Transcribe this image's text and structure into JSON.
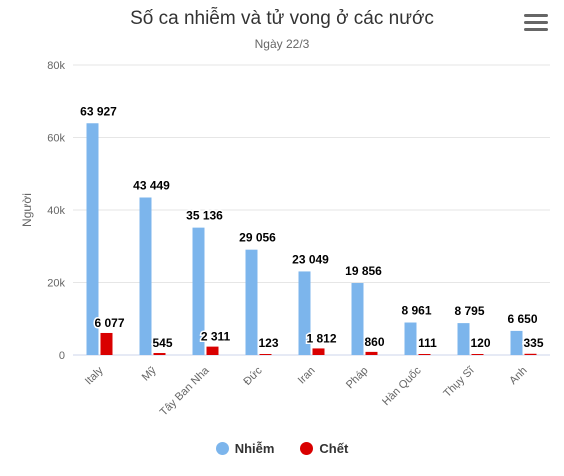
{
  "chart_data": {
    "type": "bar",
    "title": "Số ca nhiễm và tử vong ở các nước",
    "subtitle": "Ngày 22/3",
    "ylabel": "Người",
    "xlabel": "",
    "ylim": [
      0,
      80000
    ],
    "yticks": [
      0,
      20000,
      40000,
      60000,
      80000
    ],
    "ytick_labels": [
      "0",
      "20k",
      "40k",
      "60k",
      "80k"
    ],
    "grid": true,
    "legend_position": "bottom",
    "categories": [
      "Italy",
      "Mỹ",
      "Tây Ban Nha",
      "Đức",
      "Iran",
      "Pháp",
      "Hàn Quốc",
      "Thụy Sĩ",
      "Anh"
    ],
    "series": [
      {
        "name": "Nhiễm",
        "color": "#7cb5ec",
        "values": [
          63927,
          43449,
          35136,
          29056,
          23049,
          19856,
          8961,
          8795,
          6650
        ],
        "labels": [
          "63 927",
          "43 449",
          "35 136",
          "29 056",
          "23 049",
          "19 856",
          "8 961",
          "8 795",
          "6 650"
        ]
      },
      {
        "name": "Chết",
        "color": "#d90000",
        "values": [
          6077,
          545,
          2311,
          123,
          1812,
          860,
          111,
          120,
          335
        ],
        "labels": [
          "6 077",
          "545",
          "2 311",
          "123",
          "1 812",
          "860",
          "111",
          "120",
          "335"
        ]
      }
    ]
  },
  "menu": {
    "icon": "hamburger-menu-icon"
  }
}
